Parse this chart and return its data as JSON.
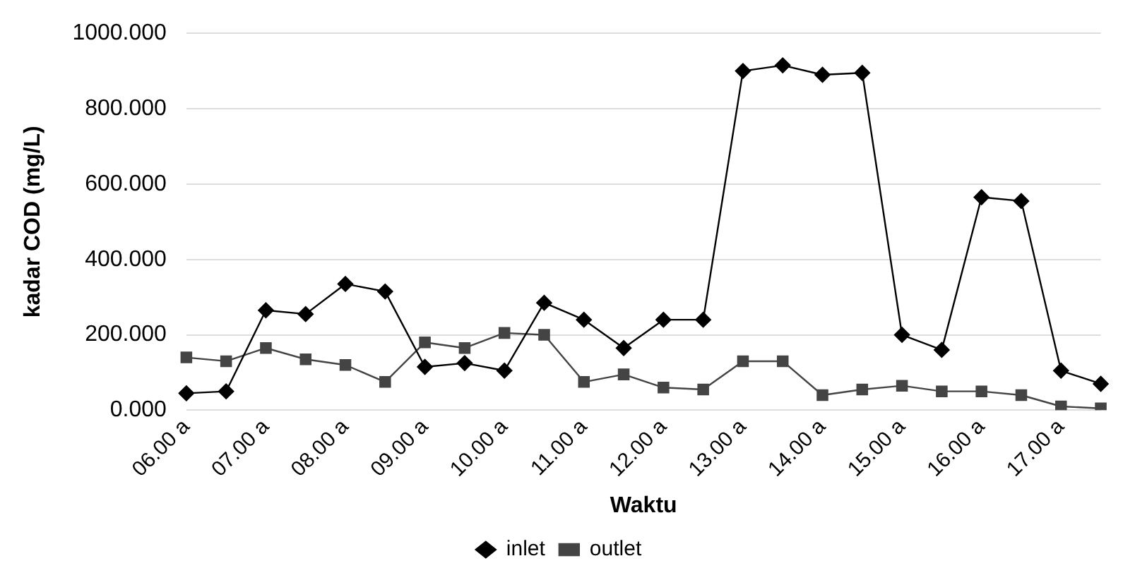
{
  "chart_data": {
    "type": "line",
    "xlabel": "Waktu",
    "ylabel": "kadar COD (mg/L)",
    "categories": [
      "06.00 a",
      null,
      "07.00 a",
      null,
      "08.00 a",
      null,
      "09.00 a",
      null,
      "10.00 a",
      null,
      "11.00 a",
      null,
      "12.00 a",
      null,
      "13.00 a",
      null,
      "14.00 a",
      null,
      "15.00 a",
      null,
      "16.00 a",
      null,
      "17.00 a",
      null
    ],
    "series": [
      {
        "name": "inlet",
        "color": "#000000",
        "marker": "diamond",
        "values": [
          45,
          50,
          265,
          255,
          335,
          315,
          115,
          125,
          105,
          285,
          240,
          165,
          240,
          240,
          900,
          915,
          890,
          895,
          200,
          160,
          565,
          555,
          105,
          70
        ]
      },
      {
        "name": "outlet",
        "color": "#444444",
        "marker": "square",
        "values": [
          140,
          130,
          165,
          135,
          120,
          75,
          180,
          165,
          205,
          200,
          75,
          95,
          60,
          55,
          130,
          130,
          40,
          55,
          65,
          50,
          50,
          40,
          10,
          5
        ]
      }
    ],
    "ylim": [
      0,
      1000
    ],
    "yticks": [
      {
        "value": 0,
        "label": "0.000"
      },
      {
        "value": 200,
        "label": "200.000"
      },
      {
        "value": 400,
        "label": "400.000"
      },
      {
        "value": 600,
        "label": "600.000"
      },
      {
        "value": 800,
        "label": "800.000"
      },
      {
        "value": 1000,
        "label": "1000.000"
      }
    ],
    "grid": "y",
    "legend": "bottom"
  }
}
